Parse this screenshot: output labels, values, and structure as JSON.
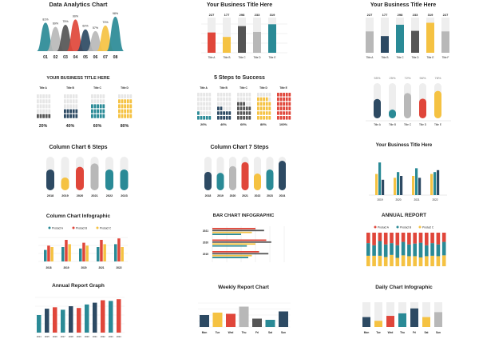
{
  "colors": {
    "teal": "#2a8a96",
    "navy": "#2d4a63",
    "red": "#e0463a",
    "gray": "#b8b8b8",
    "yellow": "#f5c242",
    "dark": "#555555",
    "track": "#eeeeee"
  },
  "chart_data": [
    {
      "type": "area",
      "title": "Data Analytics Chart",
      "categories": [
        "01",
        "02",
        "03",
        "04",
        "05",
        "06",
        "07",
        "08"
      ],
      "data_labels": [
        "81%",
        "69%",
        "75%",
        "90%",
        "62%",
        "57%",
        "73%",
        "98%"
      ],
      "values": [
        81,
        69,
        75,
        90,
        62,
        57,
        73,
        98
      ]
    },
    {
      "type": "bar",
      "title": "Your Business Title Here",
      "categories": [
        "Title A",
        "Title B",
        "Title C",
        "Title D",
        "Title E"
      ],
      "values": [
        227,
        177,
        298,
        233,
        319
      ]
    },
    {
      "type": "bar",
      "title": "Your Business Title Here",
      "categories": [
        "Title A",
        "Title B",
        "Title C",
        "Title D",
        "Title E",
        "Title F"
      ],
      "values": [
        227,
        177,
        298,
        233,
        319,
        227
      ]
    },
    {
      "type": "table",
      "title": "YOUR BUSINESS TITLE HERE",
      "categories": [
        "Title A",
        "Title B",
        "Title C",
        "Title D"
      ],
      "values": [
        20,
        40,
        60,
        80
      ],
      "data_labels": [
        "20%",
        "40%",
        "60%",
        "80%"
      ]
    },
    {
      "type": "table",
      "title": "5 Steps to Success",
      "categories": [
        "Title A",
        "Title B",
        "Title C",
        "Title D",
        "Title E"
      ],
      "values": [
        20,
        40,
        60,
        80,
        100
      ],
      "data_labels": [
        "20%",
        "40%",
        "60%",
        "80%",
        "100%"
      ]
    },
    {
      "type": "bar",
      "title": "",
      "categories": [
        "Title A",
        "Title B",
        "Title C",
        "Title D",
        "Title E"
      ],
      "values": [
        55,
        25,
        72,
        56,
        78
      ],
      "data_labels": [
        "55%",
        "25%",
        "72%",
        "56%",
        "78%"
      ]
    },
    {
      "type": "bar",
      "title": "Column Chart 6 Steps",
      "categories": [
        "2018",
        "2019",
        "2020",
        "2021",
        "2022",
        "2023"
      ],
      "values": [
        62,
        38,
        70,
        80,
        62,
        62
      ]
    },
    {
      "type": "bar",
      "title": "Column Chart 7 Steps",
      "categories": [
        "2018",
        "2019",
        "2020",
        "2021",
        "2022",
        "2023",
        "2024"
      ],
      "values": [
        55,
        52,
        72,
        84,
        50,
        62,
        88
      ]
    },
    {
      "type": "bar",
      "title": "Your Business Title Here",
      "categories": [
        "2019",
        "2020",
        "2021",
        "2022"
      ],
      "series": [
        {
          "values": [
            55,
            45,
            50,
            55
          ]
        },
        {
          "values": [
            85,
            60,
            70,
            60
          ]
        },
        {
          "values": [
            40,
            50,
            45,
            65
          ]
        }
      ]
    },
    {
      "type": "bar",
      "title": "Column Chart Infographic",
      "categories": [
        "2018",
        "2019",
        "2020",
        "2021",
        "2022"
      ],
      "series": [
        {
          "name": "Product A",
          "values": [
            40,
            50,
            45,
            50,
            60
          ]
        },
        {
          "name": "Product B",
          "values": [
            55,
            75,
            65,
            75,
            80
          ]
        },
        {
          "name": "Product C",
          "values": [
            50,
            60,
            55,
            60,
            50
          ]
        }
      ]
    },
    {
      "type": "bar",
      "title": "BAR CHART INFOGRAPHIC",
      "categories": [
        "2021",
        "2020",
        "2019"
      ],
      "series": [
        {
          "values": [
            60,
            75,
            65
          ]
        },
        {
          "values": [
            72,
            82,
            78
          ]
        },
        {
          "values": [
            55,
            60,
            55
          ]
        },
        {
          "values": [
            40,
            48,
            50
          ]
        }
      ]
    },
    {
      "type": "bar",
      "title": "ANNUAL REPORT",
      "series": [
        {
          "name": "Product A",
          "values": [
            25,
            30,
            20,
            28,
            25,
            30,
            22,
            28,
            26,
            24,
            30,
            25,
            28,
            22
          ]
        },
        {
          "name": "Product B",
          "values": [
            30,
            25,
            35,
            30,
            28,
            30,
            32,
            28,
            30,
            35,
            26,
            30,
            28,
            32
          ]
        },
        {
          "name": "Product C",
          "values": [
            25,
            25,
            25,
            22,
            27,
            20,
            26,
            24,
            24,
            21,
            24,
            25,
            24,
            26
          ]
        }
      ]
    },
    {
      "type": "bar",
      "title": "Annual Report Graph",
      "categories": [
        "2014",
        "2015",
        "2016",
        "2017",
        "2018",
        "2019",
        "2020",
        "2021",
        "2022",
        "2023",
        "2024"
      ],
      "values": [
        50,
        68,
        72,
        65,
        75,
        70,
        80,
        85,
        92,
        90,
        95
      ]
    },
    {
      "type": "bar",
      "title": "Weekly Report Chart",
      "categories": [
        "Mon",
        "Tue",
        "Wed",
        "Thu",
        "Fri",
        "Sat",
        "Sun"
      ],
      "values": [
        50,
        60,
        55,
        85,
        35,
        30,
        65
      ]
    },
    {
      "type": "bar",
      "title": "Daily Chart Infographic",
      "categories": [
        "Mon",
        "Tue",
        "Wed",
        "Thu",
        "Fri",
        "Sat",
        "Sun"
      ],
      "values": [
        40,
        25,
        45,
        55,
        75,
        40,
        60
      ]
    }
  ]
}
